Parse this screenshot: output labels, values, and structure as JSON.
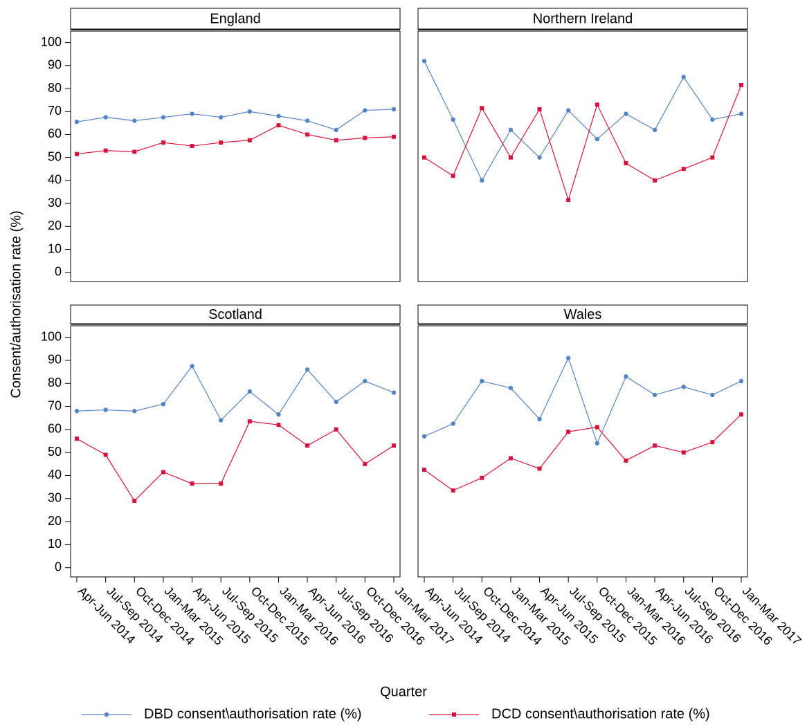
{
  "chart_data": {
    "type": "line",
    "y_label": "Consent/authorisation rate (%)",
    "x_label": "Quarter",
    "categories": [
      "Apr-Jun 2014",
      "Jul-Sep 2014",
      "Oct-Dec 2014",
      "Jan-Mar 2015",
      "Apr-Jun 2015",
      "Jul-Sep 2015",
      "Oct-Dec 2015",
      "Jan-Mar 2016",
      "Apr-Jun 2016",
      "Jul-Sep 2016",
      "Oct-Dec 2016",
      "Jan-Mar 2017"
    ],
    "ylim": [
      -4,
      105
    ],
    "yticks": [
      0,
      10,
      20,
      30,
      40,
      50,
      60,
      70,
      80,
      90,
      100
    ],
    "series": [
      {
        "name": "DBD consent\\authorisation rate (%)",
        "color": "#5584c4",
        "marker": "circle"
      },
      {
        "name": "DCD consent\\authorisation rate (%)",
        "color": "#d4143c",
        "marker": "square"
      }
    ],
    "panels": [
      {
        "title": "England",
        "series": [
          {
            "values": [
              65.5,
              67.5,
              66,
              67.5,
              69,
              67.5,
              70,
              68,
              66,
              62,
              70.5,
              71
            ]
          },
          {
            "values": [
              51.5,
              53,
              52.5,
              56.5,
              55,
              56.5,
              57.5,
              64,
              60,
              57.5,
              58.5,
              59
            ]
          }
        ]
      },
      {
        "title": "Northern Ireland",
        "series": [
          {
            "values": [
              92,
              66.5,
              40,
              62,
              50,
              70.5,
              58,
              69,
              62,
              85,
              66.5,
              69
            ]
          },
          {
            "values": [
              50,
              42,
              71.5,
              50,
              71,
              31.5,
              73,
              47.5,
              40,
              45,
              50,
              81.5
            ]
          }
        ]
      },
      {
        "title": "Scotland",
        "series": [
          {
            "values": [
              68,
              68.5,
              68,
              71,
              87.5,
              64,
              76.5,
              66.5,
              86,
              72,
              81,
              76
            ]
          },
          {
            "values": [
              56,
              49,
              29,
              41.5,
              36.5,
              36.5,
              63.5,
              62,
              53,
              60,
              45,
              53
            ]
          }
        ]
      },
      {
        "title": "Wales",
        "series": [
          {
            "values": [
              57,
              62.5,
              81,
              78,
              64.5,
              91,
              54,
              83,
              75,
              78.5,
              75,
              81
            ]
          },
          {
            "values": [
              42.5,
              33.5,
              39,
              47.5,
              43,
              59,
              61,
              46.5,
              53,
              50,
              54.5,
              66.5
            ]
          }
        ]
      }
    ]
  }
}
